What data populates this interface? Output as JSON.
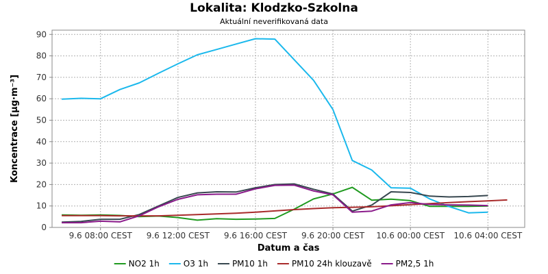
{
  "chart_data": {
    "type": "line",
    "title": "Lokalita: Klodzko-Szkolna",
    "subtitle": "Aktuální neverifikovaná data",
    "xlabel": "Datum a čas",
    "ylabel": "Koncentrace [µg·m⁻³]",
    "ylim": [
      0,
      92
    ],
    "yticks": [
      0,
      10,
      20,
      30,
      40,
      50,
      60,
      70,
      80,
      90
    ],
    "x_hours": [
      0,
      1,
      2,
      3,
      4,
      5,
      6,
      7,
      8,
      9,
      10,
      11,
      12,
      13,
      14,
      15,
      16,
      17,
      18,
      19,
      20,
      21,
      22,
      23,
      24
    ],
    "x_range": [
      -0.5,
      23.9
    ],
    "xticks": [
      {
        "hour": 2,
        "label": "9.6 08:00 CEST"
      },
      {
        "hour": 6,
        "label": "9.6 12:00 CEST"
      },
      {
        "hour": 10,
        "label": "9.6 16:00 CEST"
      },
      {
        "hour": 14,
        "label": "9.6 20:00 CEST"
      },
      {
        "hour": 18,
        "label": "10.6 00:00 CEST"
      },
      {
        "hour": 22,
        "label": "10.6 04:00 CEST"
      }
    ],
    "grid": true,
    "legend_position": "bottom",
    "series": [
      {
        "name": "NO2 1h",
        "color": "#1f9a1f",
        "values": [
          5.8,
          5.7,
          5.8,
          5.6,
          5.0,
          5.3,
          4.6,
          3.4,
          4.1,
          3.8,
          3.9,
          4.2,
          8.5,
          13.3,
          15.6,
          18.7,
          12.7,
          13.2,
          12.5,
          9.8,
          9.8,
          9.8,
          10.0,
          null,
          null
        ]
      },
      {
        "name": "O3 1h",
        "color": "#1ab8ec",
        "values": [
          59.8,
          60.2,
          60.0,
          64.3,
          67.4,
          71.9,
          76.3,
          80.5,
          83.0,
          85.5,
          88.0,
          87.8,
          78.2,
          68.6,
          55.0,
          31.2,
          26.8,
          18.5,
          18.3,
          13.3,
          9.7,
          6.8,
          7.1,
          null,
          null
        ]
      },
      {
        "name": "PM10 1h",
        "color": "#37474f",
        "values": [
          2.5,
          2.8,
          3.8,
          3.8,
          6.0,
          10.0,
          14.0,
          16.1,
          16.6,
          16.5,
          18.5,
          20.0,
          20.3,
          17.8,
          15.6,
          7.6,
          10.4,
          16.6,
          16.3,
          14.6,
          14.2,
          14.4,
          14.9,
          null,
          null
        ]
      },
      {
        "name": "PM10 24h klouzavě",
        "color": "#a82a2a",
        "values": [
          5.5,
          5.5,
          5.5,
          5.4,
          5.4,
          5.4,
          5.7,
          6.0,
          6.3,
          6.6,
          7.1,
          7.7,
          8.3,
          8.8,
          9.2,
          9.4,
          9.6,
          10.1,
          10.6,
          11.1,
          11.6,
          12.0,
          12.4,
          12.8,
          null
        ]
      },
      {
        "name": "PM2,5 1h",
        "color": "#8a1a8a",
        "values": [
          2.2,
          2.2,
          2.9,
          2.6,
          5.4,
          9.6,
          13.1,
          15.2,
          15.5,
          15.5,
          18.0,
          19.6,
          19.7,
          17.0,
          15.2,
          7.1,
          7.6,
          10.5,
          11.6,
          10.7,
          10.5,
          10.4,
          10.2,
          null,
          null
        ]
      }
    ]
  }
}
